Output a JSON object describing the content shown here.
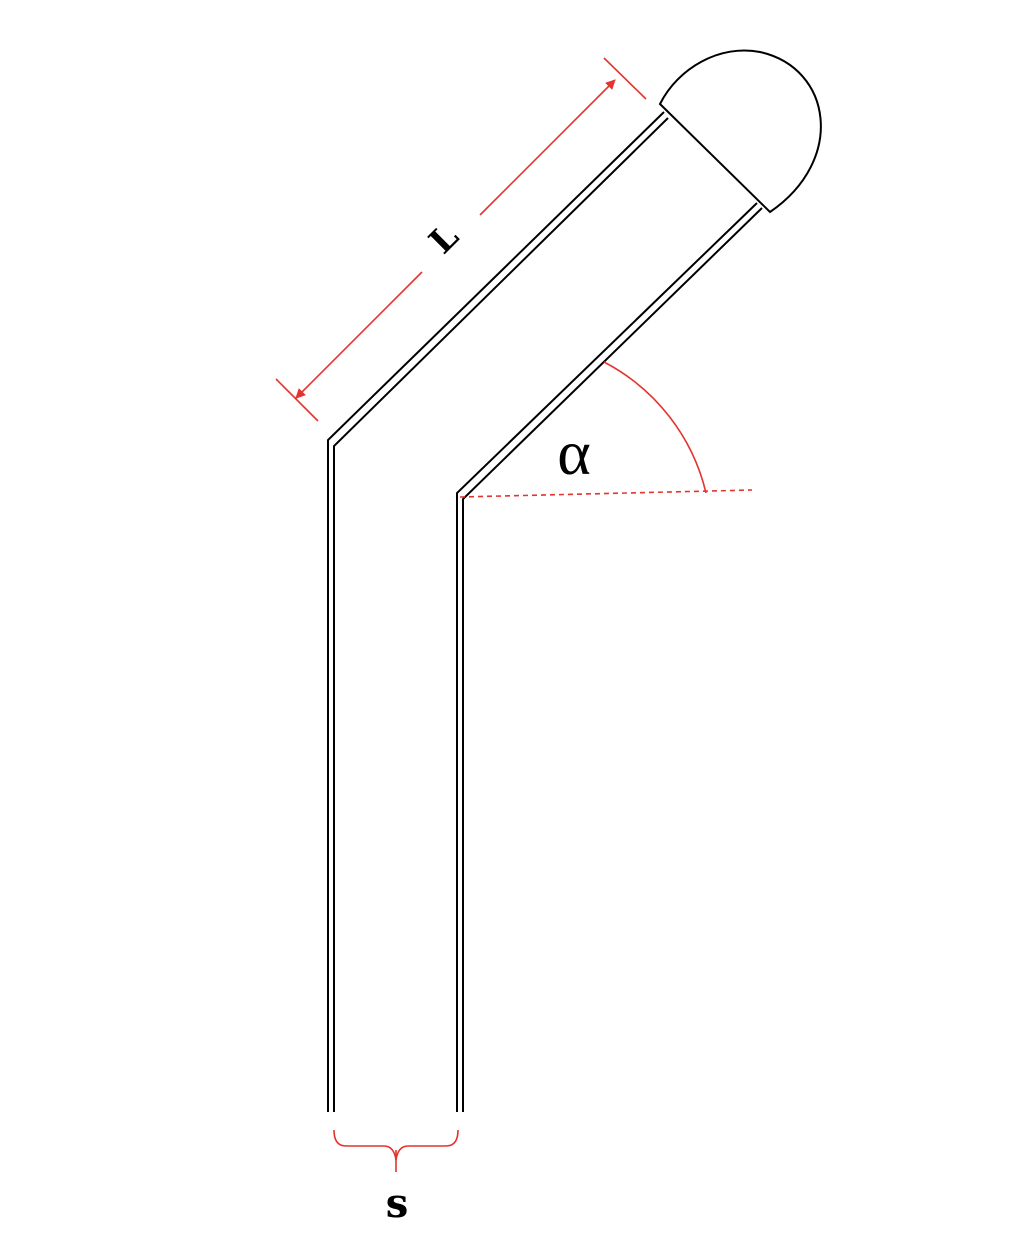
{
  "labels": {
    "length": "L",
    "angle": "α",
    "spacing": "s"
  },
  "colors": {
    "accent": "#e3342f",
    "pipe": "#000000",
    "background": "#ffffff"
  }
}
